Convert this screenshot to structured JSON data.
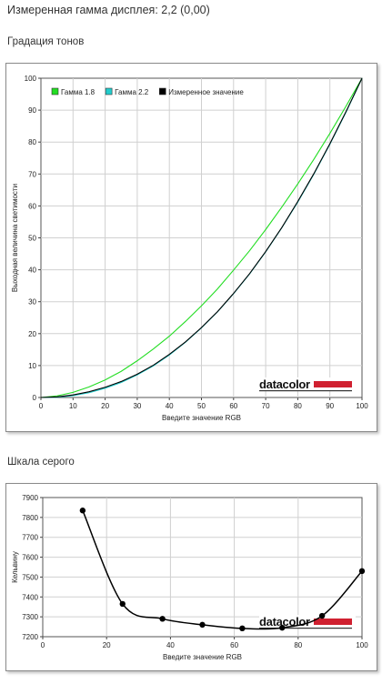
{
  "header": {
    "measured_gamma": "Измеренная гамма дисплея: 2,2 (0,00)"
  },
  "sections": {
    "gradation_title": "Градация тонов",
    "gray_title": "Шкала серого"
  },
  "colors": {
    "gamma18": "#22dd22",
    "gamma22": "#22cccc",
    "measured": "#000000",
    "grid": "#d0d0d0",
    "brand_red": "#d02030"
  },
  "chart_data": [
    {
      "type": "line",
      "xlabel": "Введите значение RGB",
      "ylabel": "Выходная величина светимости",
      "xlim": [
        0,
        100
      ],
      "ylim": [
        0,
        100
      ],
      "x_ticks": [
        "0",
        "10",
        "20",
        "30",
        "40",
        "50",
        "60",
        "70",
        "80",
        "90",
        "100"
      ],
      "y_ticks": [
        "0",
        "10",
        "20",
        "30",
        "40",
        "50",
        "60",
        "70",
        "80",
        "90",
        "100"
      ],
      "grid": true,
      "legend_position": "top-left",
      "watermark": "datacolor",
      "series": [
        {
          "name": "Гамма 1.8",
          "color": "#22dd22",
          "x": [
            0,
            5,
            10,
            15,
            20,
            25,
            30,
            35,
            40,
            45,
            50,
            55,
            60,
            65,
            70,
            75,
            80,
            85,
            90,
            95,
            100
          ],
          "y": [
            0,
            0.5,
            1.6,
            3.3,
            5.5,
            8.2,
            11.5,
            15.2,
            19.2,
            23.8,
            28.7,
            34.0,
            39.9,
            46.0,
            52.6,
            59.6,
            66.9,
            74.6,
            82.7,
            91.2,
            100
          ]
        },
        {
          "name": "Гамма 2.2",
          "color": "#22cccc",
          "x": [
            0,
            5,
            10,
            15,
            20,
            25,
            30,
            35,
            40,
            45,
            50,
            55,
            60,
            65,
            70,
            75,
            80,
            85,
            90,
            95,
            100
          ],
          "y": [
            0,
            0.1,
            0.6,
            1.5,
            2.9,
            4.7,
            7.1,
            9.9,
            13.3,
            17.3,
            21.8,
            26.8,
            32.5,
            38.7,
            45.6,
            53.1,
            61.2,
            69.9,
            79.3,
            89.3,
            100
          ]
        },
        {
          "name": "Измеренное значение",
          "color": "#000000",
          "x": [
            0,
            5,
            10,
            15,
            20,
            25,
            30,
            35,
            40,
            45,
            50,
            55,
            60,
            65,
            70,
            75,
            80,
            85,
            90,
            95,
            100
          ],
          "y": [
            0,
            0.2,
            0.8,
            1.8,
            3.2,
            5.0,
            7.3,
            10.1,
            13.5,
            17.4,
            21.9,
            26.9,
            32.6,
            38.8,
            45.7,
            53.2,
            61.4,
            70.1,
            79.5,
            89.5,
            100
          ]
        }
      ]
    },
    {
      "type": "line",
      "xlabel": "Введите значение RGB",
      "ylabel": "Кельвину",
      "xlim": [
        0,
        100
      ],
      "ylim": [
        7200,
        7900
      ],
      "x_ticks": [
        "0",
        "20",
        "40",
        "60",
        "80",
        "100"
      ],
      "y_ticks": [
        "7200",
        "7300",
        "7400",
        "7500",
        "7600",
        "7700",
        "7800",
        "7900"
      ],
      "grid": true,
      "watermark": "datacolor",
      "series": [
        {
          "name": "",
          "color": "#000000",
          "x": [
            12.5,
            25,
            37.5,
            50,
            62.5,
            75,
            87.5,
            100
          ],
          "y": [
            7835,
            7365,
            7290,
            7260,
            7242,
            7245,
            7305,
            7530
          ]
        }
      ]
    }
  ]
}
